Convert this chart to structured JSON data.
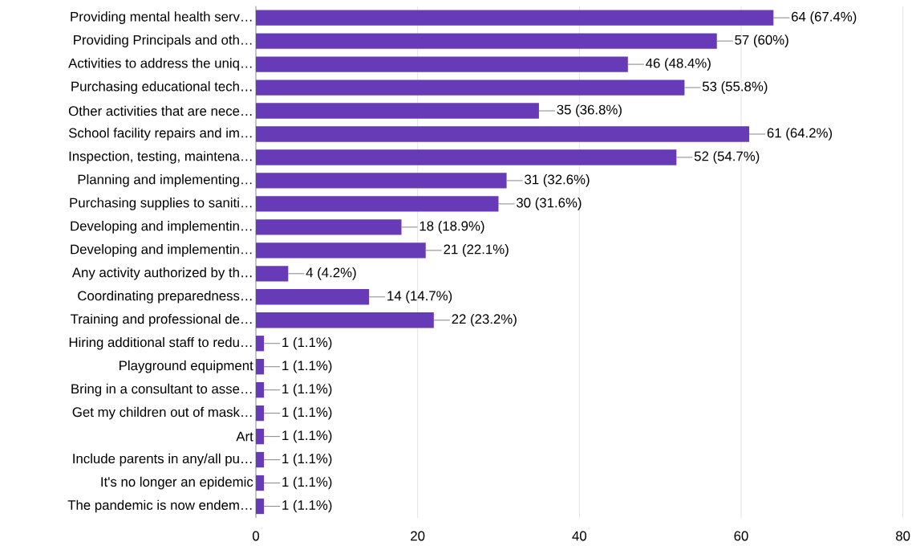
{
  "chart_data": {
    "type": "bar",
    "orientation": "horizontal",
    "categories": [
      "Providing mental health serv…",
      "Providing Principals and oth…",
      "Activities to address the uniq…",
      "Purchasing educational tech…",
      "Other activities that are nece…",
      "School facility repairs and im…",
      "Inspection, testing, maintena…",
      "Planning and implementing…",
      "Purchasing supplies to saniti…",
      "Developing and implementin…",
      "Developing and implementin…",
      "Any activity authorized by th…",
      "Coordinating preparedness…",
      "Training and professional de…",
      "Hiring additional staff to redu…",
      "Playground equipment",
      "Bring in a consultant to asse…",
      "Get my children out of mask…",
      "Art",
      "Include parents in any/all pu…",
      "It's no longer an epidemic",
      "The pandemic is now endem…"
    ],
    "values": [
      64,
      57,
      46,
      53,
      35,
      61,
      52,
      31,
      30,
      18,
      21,
      4,
      14,
      22,
      1,
      1,
      1,
      1,
      1,
      1,
      1,
      1
    ],
    "value_labels": [
      "64 (67.4%)",
      "57 (60%)",
      "46 (48.4%)",
      "53 (55.8%)",
      "35 (36.8%)",
      "61 (64.2%)",
      "52 (54.7%)",
      "31 (32.6%)",
      "30 (31.6%)",
      "18 (18.9%)",
      "21 (22.1%)",
      "4 (4.2%)",
      "14 (14.7%)",
      "22 (23.2%)",
      "1 (1.1%)",
      "1 (1.1%)",
      "1 (1.1%)",
      "1 (1.1%)",
      "1 (1.1%)",
      "1 (1.1%)",
      "1 (1.1%)",
      "1 (1.1%)"
    ],
    "color": "#673ab7",
    "xlim": [
      0,
      80
    ],
    "xticks": [
      0,
      20,
      40,
      60,
      80
    ],
    "grid": "x"
  }
}
